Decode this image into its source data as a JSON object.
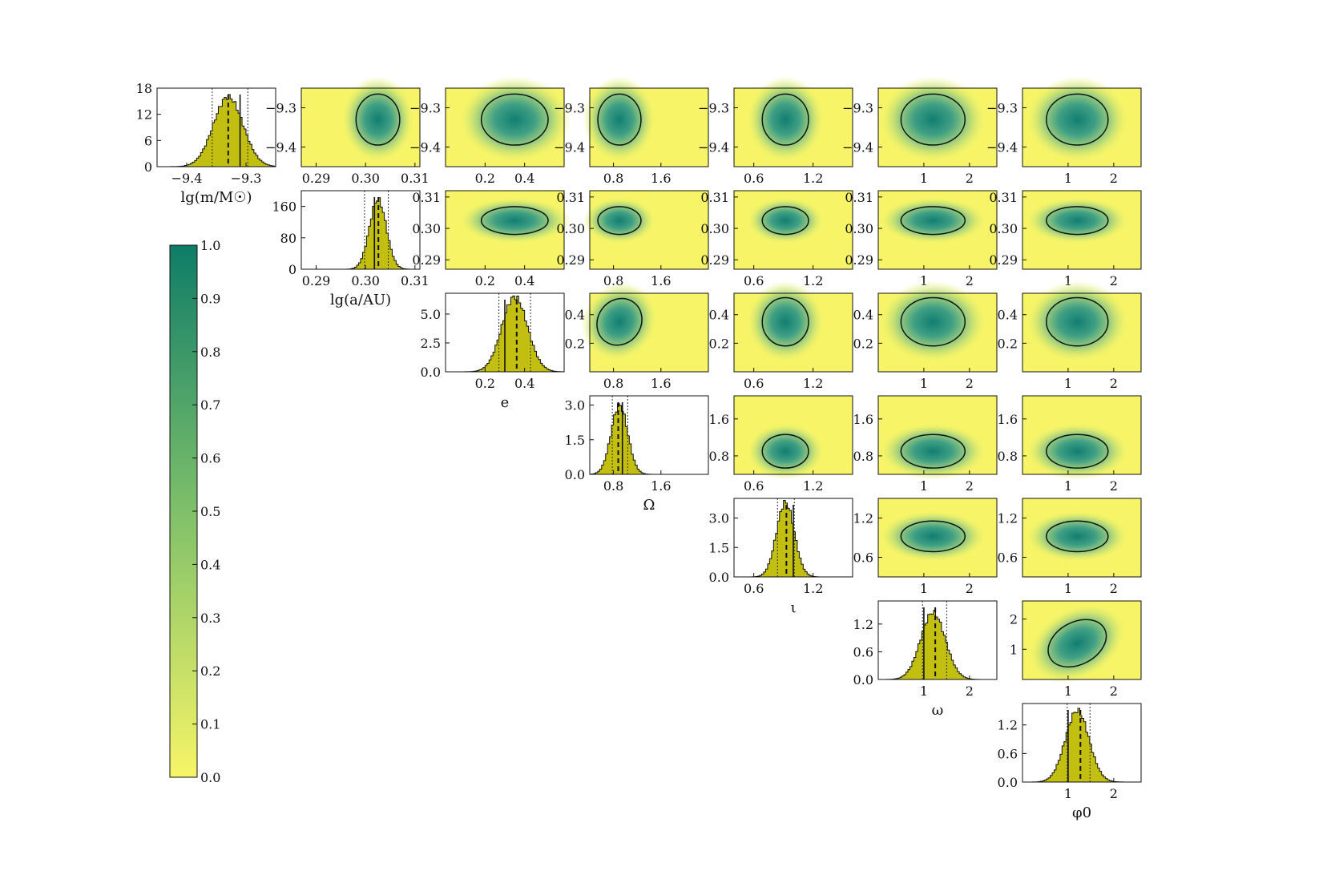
{
  "chart_data": {
    "type": "corner",
    "colorbar": {
      "ticks": [
        "1.0",
        "0.9",
        "0.8",
        "0.7",
        "0.6",
        "0.5",
        "0.4",
        "0.3",
        "0.2",
        "0.1",
        "0.0"
      ],
      "range": [
        0,
        1
      ],
      "color_low": "#f7f567",
      "color_high": "#0e7c67"
    },
    "colors": {
      "panel_bg": "#f7f567",
      "hist_fill": "#c2bf10",
      "peak": "#1e8f7f",
      "contour": "#111111"
    },
    "parameters": [
      {
        "key": "lgm",
        "label": "lg(m/M☉)",
        "range": [
          -9.45,
          -9.25
        ],
        "tick_values": [
          -9.4,
          -9.3
        ],
        "tick_labels": [
          "−9.4",
          "−9.3"
        ],
        "y_tick_labels": [
          "−9.3",
          "−9.4"
        ],
        "y_tick_values": [
          -9.3,
          -9.4
        ],
        "y_range": [
          -9.45,
          -9.25
        ]
      },
      {
        "key": "lga",
        "label": "lg(a/AU)",
        "range": [
          0.287,
          0.311
        ],
        "tick_values": [
          0.29,
          0.3,
          0.31
        ],
        "tick_labels": [
          "0.29",
          "0.30",
          "0.31"
        ],
        "y_tick_labels": [
          "0.31",
          "0.30",
          "0.29"
        ],
        "y_tick_values": [
          0.31,
          0.3,
          0.29
        ],
        "y_range": [
          0.287,
          0.312
        ]
      },
      {
        "key": "e",
        "label": "e",
        "range": [
          0.0,
          0.6
        ],
        "tick_values": [
          0.2,
          0.4
        ],
        "tick_labels": [
          "0.2",
          "0.4"
        ],
        "y_tick_labels": [
          "0.4",
          "0.2"
        ],
        "y_tick_values": [
          0.4,
          0.2
        ],
        "y_range": [
          0.0,
          0.55
        ]
      },
      {
        "key": "Omega",
        "label": "Ω",
        "range": [
          0.4,
          2.4
        ],
        "tick_values": [
          0.8,
          1.6
        ],
        "tick_labels": [
          "0.8",
          "1.6"
        ],
        "y_tick_labels": [
          "1.6",
          "0.8"
        ],
        "y_tick_values": [
          1.6,
          0.8
        ],
        "y_range": [
          0.4,
          2.1
        ]
      },
      {
        "key": "iota",
        "label": "ι",
        "range": [
          0.4,
          1.6
        ],
        "tick_values": [
          0.6,
          1.2
        ],
        "tick_labels": [
          "0.6",
          "1.2"
        ],
        "y_tick_labels": [
          "1.2",
          "0.6"
        ],
        "y_tick_values": [
          1.2,
          0.6
        ],
        "y_range": [
          0.3,
          1.5
        ]
      },
      {
        "key": "omega",
        "label": "ω",
        "range": [
          0.0,
          2.6
        ],
        "tick_values": [
          1,
          2
        ],
        "tick_labels": [
          "1",
          "2"
        ],
        "y_tick_labels": [
          "2",
          "1"
        ],
        "y_tick_values": [
          2,
          1
        ],
        "y_range": [
          0.0,
          2.6
        ]
      },
      {
        "key": "phi0",
        "label": "φ0",
        "range": [
          0.0,
          2.6
        ],
        "tick_values": [
          1,
          2
        ],
        "tick_labels": [
          "1",
          "2"
        ]
      }
    ],
    "marginals": [
      {
        "key": "lgm",
        "y_tick_labels": [
          "18",
          "12",
          "6",
          "0"
        ],
        "y_tick_values": [
          18,
          12,
          6,
          0
        ],
        "y_max": 18,
        "peak_height": 16,
        "center": -9.33,
        "sigma": 0.025,
        "true_value": -9.31,
        "estimate": -9.33,
        "lower": -9.357,
        "upper": -9.297
      },
      {
        "key": "lga",
        "y_tick_labels": [
          "160",
          "80",
          "0"
        ],
        "y_tick_values": [
          160,
          80,
          0
        ],
        "y_max": 200,
        "peak_height": 178,
        "center": 0.3025,
        "sigma": 0.0017,
        "true_value": 0.3018,
        "estimate": 0.3026,
        "lower": 0.2998,
        "upper": 0.3046
      },
      {
        "key": "e",
        "y_tick_labels": [
          "5.0",
          "2.5",
          "0.0"
        ],
        "y_tick_values": [
          5.0,
          2.5,
          0.0
        ],
        "y_max": 6.8,
        "peak_height": 6.5,
        "center": 0.35,
        "sigma": 0.065,
        "true_value": 0.3,
        "estimate": 0.36,
        "lower": 0.27,
        "upper": 0.43
      },
      {
        "key": "Omega",
        "y_tick_labels": [
          "3.0",
          "1.5",
          "0.0"
        ],
        "y_tick_values": [
          3.0,
          1.5,
          0.0
        ],
        "y_max": 3.4,
        "peak_height": 3.0,
        "center": 0.9,
        "sigma": 0.14,
        "true_value": 0.95,
        "estimate": 0.88,
        "lower": 0.78,
        "upper": 1.04
      },
      {
        "key": "iota",
        "y_tick_labels": [
          "3.0",
          "1.5",
          "0.0"
        ],
        "y_tick_values": [
          3.0,
          1.5,
          0.0
        ],
        "y_max": 4.0,
        "peak_height": 3.8,
        "center": 0.92,
        "sigma": 0.09,
        "true_value": 1.0,
        "estimate": 0.93,
        "lower": 0.84,
        "upper": 1.01
      },
      {
        "key": "omega",
        "y_tick_labels": [
          "1.2",
          "0.6",
          "0.0"
        ],
        "y_tick_values": [
          1.2,
          0.6,
          0.0
        ],
        "y_max": 1.7,
        "peak_height": 1.45,
        "center": 1.2,
        "sigma": 0.27,
        "true_value": 1.0,
        "estimate": 1.25,
        "lower": 0.97,
        "upper": 1.5
      },
      {
        "key": "phi0",
        "y_tick_labels": [
          "1.2",
          "0.6",
          "0.0"
        ],
        "y_tick_values": [
          1.2,
          0.6,
          0.0
        ],
        "y_max": 1.65,
        "peak_height": 1.5,
        "center": 1.2,
        "sigma": 0.26,
        "true_value": 1.0,
        "estimate": 1.27,
        "lower": 0.98,
        "upper": 1.48
      }
    ]
  }
}
